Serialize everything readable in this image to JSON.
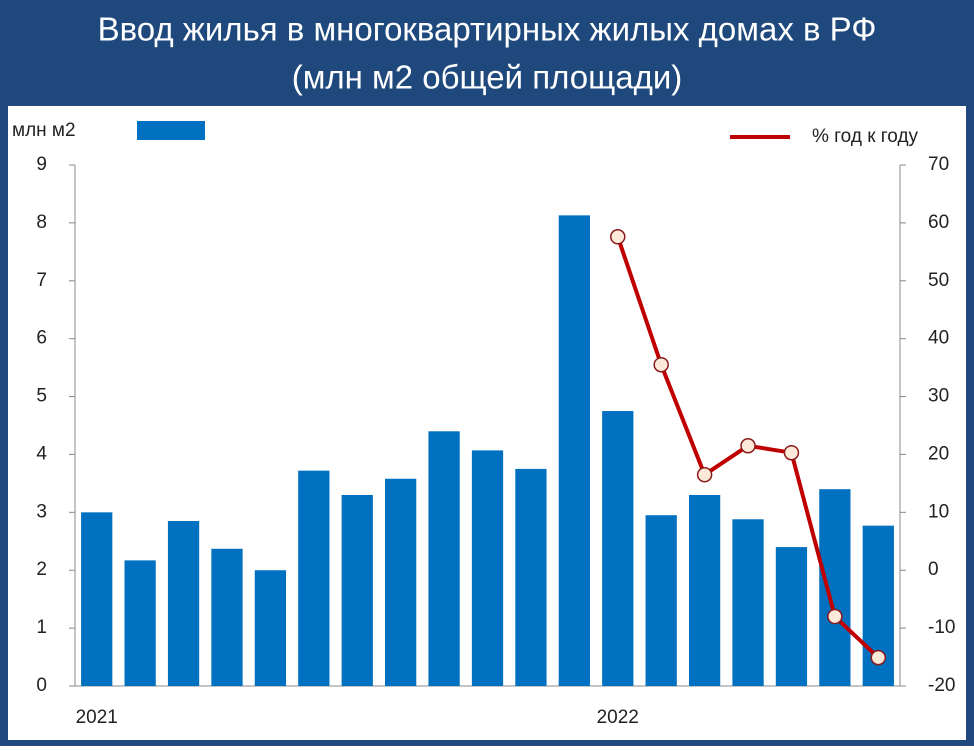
{
  "chart_data": {
    "type": "bar",
    "title": "Ввод жилья в многоквартирных жилых домах в РФ",
    "subtitle": "(млн м2 общей площади)",
    "y_label": "млн м2",
    "categories": [
      "2021",
      null,
      null,
      null,
      null,
      null,
      null,
      null,
      null,
      null,
      null,
      null,
      "2022",
      null,
      null,
      null,
      null,
      null,
      null
    ],
    "series": [
      {
        "color": "#0070c0",
        "values": [
          3.0,
          2.17,
          2.85,
          2.37,
          2.0,
          3.72,
          3.3,
          3.58,
          4.4,
          4.07,
          3.75,
          8.13,
          4.75,
          2.95,
          3.3,
          2.88,
          2.4,
          3.4,
          2.77
        ]
      },
      {
        "name": "% год к году",
        "color": "#c00000",
        "axis": "y2",
        "type": "line",
        "values": [
          null,
          null,
          null,
          null,
          null,
          null,
          null,
          null,
          null,
          null,
          null,
          null,
          57.6,
          35.5,
          16.5,
          21.5,
          20.3,
          -8.0,
          -15.1
        ]
      }
    ],
    "ylim": [
      0,
      9
    ],
    "yticks": [
      0,
      1,
      2,
      3,
      4,
      5,
      6,
      7,
      8,
      9
    ],
    "y2lim": [
      -20,
      70
    ],
    "y2ticks": [
      -20,
      -10,
      0,
      10,
      20,
      30,
      40,
      50,
      60,
      70
    ],
    "grid": false
  }
}
